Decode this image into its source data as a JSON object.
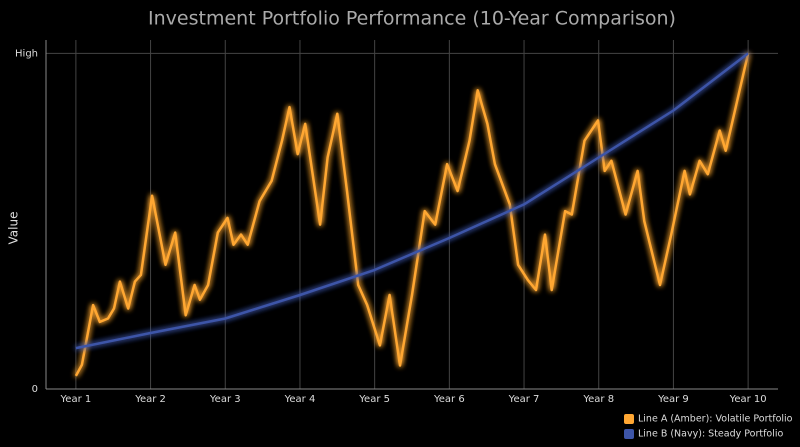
{
  "chart_data": {
    "type": "line",
    "title": "Investment Portfolio Performance (10-Year Comparison)",
    "y_label": "Value",
    "xlim": [
      0.6,
      10.4
    ],
    "xticks": [
      {
        "value": 1,
        "label": "Year 1"
      },
      {
        "value": 2,
        "label": "Year 2"
      },
      {
        "value": 3,
        "label": "Year 3"
      },
      {
        "value": 4,
        "label": "Year 4"
      },
      {
        "value": 5,
        "label": "Year 5"
      },
      {
        "value": 6,
        "label": "Year 6"
      },
      {
        "value": 7,
        "label": "Year 7"
      },
      {
        "value": 8,
        "label": "Year 8"
      },
      {
        "value": 9,
        "label": "Year 9"
      },
      {
        "value": 10,
        "label": "Year 10"
      }
    ],
    "ylim": [
      0,
      104
    ],
    "yticks": [
      0,
      {
        "value": 100,
        "label": "High"
      }
    ],
    "grid": true,
    "legend": "lower right",
    "series": [
      {
        "name": "Line A (Amber): Volatile Portfolio",
        "color": "#ffa733",
        "x": [
          1.0,
          1.08,
          1.23,
          1.32,
          1.43,
          1.51,
          1.59,
          1.7,
          1.79,
          1.87,
          2.02,
          2.2,
          2.33,
          2.47,
          2.59,
          2.66,
          2.77,
          2.9,
          3.03,
          3.11,
          3.21,
          3.3,
          3.46,
          3.62,
          3.76,
          3.86,
          3.97,
          4.07,
          4.27,
          4.37,
          4.5,
          4.63,
          4.78,
          4.9,
          5.07,
          5.2,
          5.34,
          5.5,
          5.67,
          5.81,
          5.97,
          6.11,
          6.27,
          6.38,
          6.51,
          6.61,
          6.81,
          6.92,
          7.05,
          7.16,
          7.28,
          7.37,
          7.55,
          7.64,
          7.81,
          7.99,
          8.08,
          8.17,
          8.36,
          8.52,
          8.61,
          8.82,
          8.97,
          9.15,
          9.22,
          9.35,
          9.46,
          9.62,
          9.7,
          10.0
        ],
        "values": [
          3.9,
          7.2,
          25,
          20,
          21,
          24,
          32,
          24,
          32,
          34,
          57.6,
          37,
          46.6,
          22,
          31,
          26.6,
          31,
          46.6,
          51,
          43,
          46,
          43,
          56,
          62,
          74,
          84,
          70,
          79,
          49,
          69,
          82,
          59,
          31,
          25,
          13,
          28,
          7,
          28,
          53,
          49,
          67,
          59,
          74,
          89,
          79,
          67,
          55,
          37,
          32.5,
          29.5,
          46,
          29.5,
          53,
          52,
          74,
          80,
          65,
          68,
          52,
          65,
          50,
          31,
          46,
          65,
          58,
          68,
          64,
          77,
          71,
          100
        ]
      },
      {
        "name": "Line B (Navy): Steady Portfolio",
        "color": "#3d55a8",
        "x": [
          1,
          2,
          3,
          4,
          5,
          6,
          7,
          8,
          9,
          10
        ],
        "values": [
          12.2,
          16.7,
          21,
          28,
          35.5,
          45,
          55,
          69,
          83,
          100
        ]
      }
    ]
  }
}
